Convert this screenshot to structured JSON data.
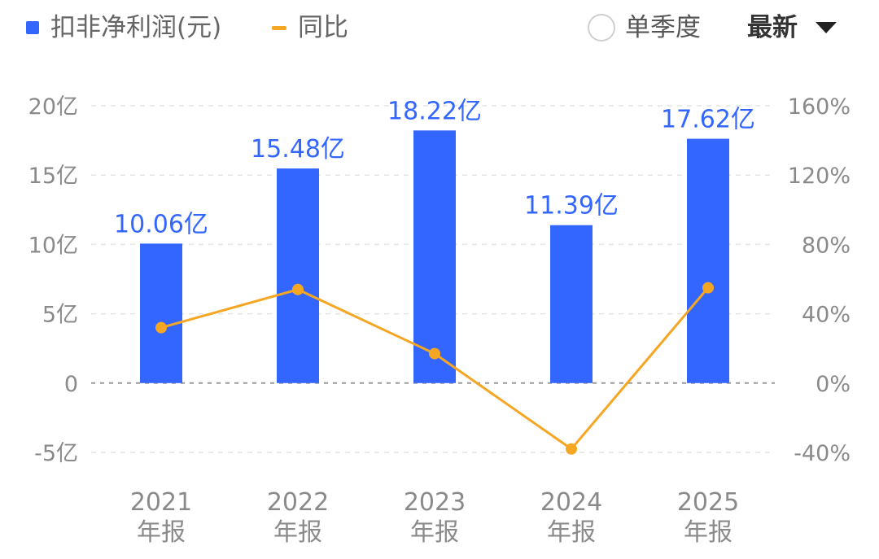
{
  "legend": {
    "bar_series_name": "扣非净利润(元)",
    "line_series_name": "同比"
  },
  "controls": {
    "single_quarter_label": "单季度",
    "single_quarter_checked": false,
    "period_selected": "最新"
  },
  "chart_data": {
    "type": "bar",
    "categories": [
      "2021\n年报",
      "2022\n年报",
      "2023\n年报",
      "2024\n年报",
      "2025\n年报"
    ],
    "series": [
      {
        "name": "扣非净利润(元)",
        "type": "bar",
        "axis": "left",
        "values": [
          10.06,
          15.48,
          18.22,
          11.39,
          17.62
        ],
        "labels": [
          "10.06亿",
          "15.48亿",
          "18.22亿",
          "11.39亿",
          "17.62亿"
        ],
        "color": "#3366ff"
      },
      {
        "name": "同比",
        "type": "line",
        "axis": "right",
        "values": [
          32,
          54,
          17,
          -38,
          55
        ],
        "color": "#f5a623"
      }
    ],
    "y_left": {
      "ylim": [
        -5,
        20
      ],
      "ticks": [
        20,
        15,
        10,
        5,
        0,
        -5
      ],
      "tick_labels": [
        "20亿",
        "15亿",
        "10亿",
        "5亿",
        "0",
        "-5亿"
      ]
    },
    "y_right": {
      "ylim": [
        -40,
        160
      ],
      "ticks": [
        160,
        120,
        80,
        40,
        0,
        -40
      ],
      "tick_labels": [
        "160%",
        "120%",
        "80%",
        "40%",
        "0%",
        "-40%"
      ]
    },
    "grid": true,
    "legend_position": "top-left"
  }
}
